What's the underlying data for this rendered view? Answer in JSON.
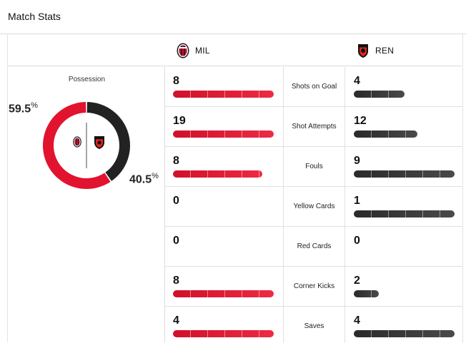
{
  "header": {
    "title": "Match Stats"
  },
  "teams": {
    "home": {
      "abbr": "MIL",
      "color": "#e2132f",
      "crest_icon": "milan-crest-icon"
    },
    "away": {
      "abbr": "REN",
      "color": "#222222",
      "crest_icon": "rennes-crest-icon"
    }
  },
  "possession": {
    "label": "Possession",
    "home_value": "59.5",
    "away_value": "40.5",
    "unit": "%",
    "home_fraction": 0.595
  },
  "stats": [
    {
      "label": "Shots on Goal",
      "home": "8",
      "away": "4",
      "home_fill": 1.0,
      "away_fill": 0.5
    },
    {
      "label": "Shot Attempts",
      "home": "19",
      "away": "12",
      "home_fill": 1.0,
      "away_fill": 0.63
    },
    {
      "label": "Fouls",
      "home": "8",
      "away": "9",
      "home_fill": 0.89,
      "away_fill": 1.0
    },
    {
      "label": "Yellow Cards",
      "home": "0",
      "away": "1",
      "home_fill": 0.0,
      "away_fill": 1.0
    },
    {
      "label": "Red Cards",
      "home": "0",
      "away": "0",
      "home_fill": 0.0,
      "away_fill": 0.0
    },
    {
      "label": "Corner Kicks",
      "home": "8",
      "away": "2",
      "home_fill": 1.0,
      "away_fill": 0.25
    },
    {
      "label": "Saves",
      "home": "4",
      "away": "4",
      "home_fill": 1.0,
      "away_fill": 1.0
    }
  ]
}
